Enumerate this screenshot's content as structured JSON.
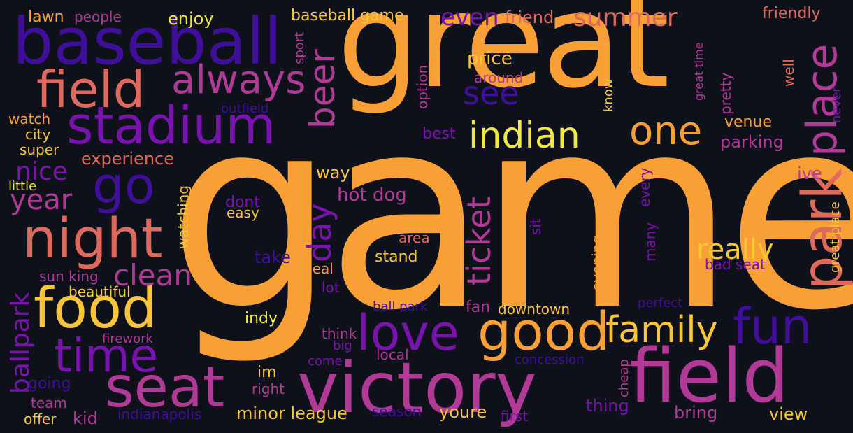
{
  "words": {
    "game": "game",
    "great": "great",
    "victory": "victory",
    "field_right": "field",
    "baseball": "baseball",
    "stadium": "stadium",
    "field_left": "field",
    "night": "night",
    "food": "food",
    "seat": "seat",
    "time": "time",
    "park": "park",
    "place": "place",
    "good": "good",
    "love": "love",
    "fun": "fun",
    "family": "family",
    "indian": "indian",
    "one": "one",
    "always": "always",
    "go": "go",
    "beer": "beer",
    "see": "see",
    "ticket": "ticket",
    "day": "day",
    "clean": "clean",
    "really": "really",
    "ballpark": "ballpark",
    "nice": "nice",
    "year": "year",
    "summer": "summer",
    "even": "even",
    "friend": "friend",
    "friendly": "friendly",
    "baseball_game": "baseball game",
    "enjoy": "enjoy",
    "lawn": "lawn",
    "people": "people",
    "price": "price",
    "around": "around",
    "sport": "sport",
    "option": "option",
    "outfield": "outfield",
    "watch": "watch",
    "city": "city",
    "super": "super",
    "experience": "experience",
    "little": "little",
    "best": "best",
    "parking": "parking",
    "venue": "venue",
    "way": "way",
    "hot_dog": "hot dog",
    "dont": "dont",
    "easy": "easy",
    "watching": "watching",
    "every": "every",
    "sit": "sit",
    "many": "many",
    "evening": "evening",
    "ive": "ive",
    "area": "area",
    "take": "take",
    "stand": "stand",
    "deal": "deal",
    "lot": "lot",
    "sun_king": "sun king",
    "beautiful": "beautiful",
    "bad_seat": "bad seat",
    "ball_park": "ball park",
    "fan": "fan",
    "downtown": "downtown",
    "perfect": "perfect",
    "indy": "indy",
    "think": "think",
    "firework": "firework",
    "big": "big",
    "come": "come",
    "local": "local",
    "concession": "concession",
    "going": "going",
    "im": "im",
    "right": "right",
    "cheap": "cheap",
    "team": "team",
    "thing": "thing",
    "offer": "offer",
    "kid": "kid",
    "indianapolis": "indianapolis",
    "minor_league": "minor league",
    "season": "season",
    "youre": "youre",
    "first": "first",
    "bring": "bring",
    "view": "view",
    "great_place": "great place",
    "great_time": "great time",
    "pretty": "pretty",
    "know": "know",
    "well": "well",
    "never": "never"
  },
  "colors": {
    "background": "#0e111a",
    "orange": "#f89f36",
    "coral": "#de6a5d",
    "magenta": "#b03a96",
    "purple": "#7a12b0",
    "indigo": "#3f0e9a",
    "yellow": "#f2e93a",
    "gold": "#f7c536"
  }
}
